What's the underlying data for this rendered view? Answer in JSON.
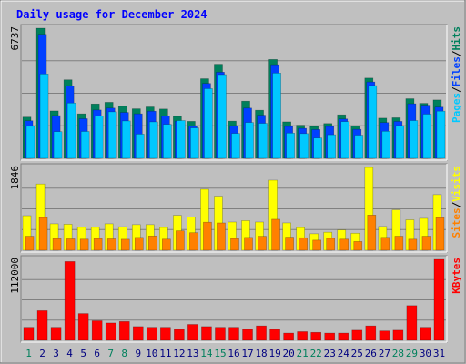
{
  "title": "Daily usage for December 2024",
  "colors": {
    "background": "#c0c0c0",
    "plot_background": "#bfbfbf",
    "gridline": "#808080",
    "title": "#0000ff",
    "hits": "#00805c",
    "files": "#0040ff",
    "pages": "#00c8ff",
    "visits": "#ffff00",
    "sites": "#ff8000",
    "kbytes": "#ff0000",
    "day_label": "#000080",
    "weekend_label": "#00805c"
  },
  "chart_data": [
    {
      "type": "bar",
      "panel": "hits-files-pages",
      "y_max_label": "6737",
      "ylim": [
        0,
        6737
      ],
      "grid": true,
      "legend": {
        "placement": "right-vertical",
        "entries": [
          {
            "label": "Pages",
            "color": "#00c8ff"
          },
          {
            "label": "Files",
            "color": "#0040ff"
          },
          {
            "label": "Hits",
            "color": "#00805c"
          }
        ],
        "separator": "/"
      },
      "categories": [
        "1",
        "2",
        "3",
        "4",
        "5",
        "6",
        "7",
        "8",
        "9",
        "10",
        "11",
        "12",
        "13",
        "14",
        "15",
        "16",
        "17",
        "18",
        "19",
        "20",
        "21",
        "22",
        "23",
        "24",
        "25",
        "26",
        "27",
        "28",
        "29",
        "30",
        "31"
      ],
      "series": [
        {
          "name": "Hits",
          "values": [
            2133,
            6737,
            2452,
            4064,
            2303,
            2815,
            2900,
            2695,
            2563,
            2660,
            2552,
            2172,
            1913,
            4120,
            4871,
            1925,
            2958,
            2489,
            5118,
            1887,
            1714,
            1650,
            1800,
            2253,
            1686,
            4153,
            2078,
            2099,
            3084,
            2845,
            3020
          ]
        },
        {
          "name": "Files",
          "values": [
            1942,
            6416,
            2213,
            3744,
            2051,
            2502,
            2600,
            2375,
            2303,
            2439,
            2200,
            1927,
            1665,
            3876,
            4460,
            1690,
            2600,
            2233,
            4847,
            1650,
            1550,
            1490,
            1650,
            2036,
            1500,
            3952,
            1850,
            1912,
            2824,
            2750,
            2650
          ]
        },
        {
          "name": "Pages",
          "values": [
            1660,
            4367,
            1380,
            2862,
            1390,
            2191,
            2407,
            1935,
            1254,
            1887,
            1758,
            1954,
            1574,
            3608,
            4334,
            1288,
            1855,
            1811,
            4413,
            1306,
            1280,
            1050,
            1220,
            1900,
            1200,
            3764,
            1400,
            1690,
            1954,
            2286,
            2441
          ]
        }
      ]
    },
    {
      "type": "bar",
      "panel": "visits-sites",
      "y_max_label": "1846",
      "ylim": [
        0,
        1846
      ],
      "grid": true,
      "legend": {
        "placement": "right-vertical",
        "entries": [
          {
            "label": "Sites",
            "color": "#ff8000"
          },
          {
            "label": "Visits",
            "color": "#ffff00"
          }
        ],
        "separator": "/"
      },
      "categories": [
        "1",
        "2",
        "3",
        "4",
        "5",
        "6",
        "7",
        "8",
        "9",
        "10",
        "11",
        "12",
        "13",
        "14",
        "15",
        "16",
        "17",
        "18",
        "19",
        "20",
        "21",
        "22",
        "23",
        "24",
        "25",
        "26",
        "27",
        "28",
        "29",
        "30",
        "31"
      ],
      "series": [
        {
          "name": "Visits",
          "values": [
            770,
            1477,
            590,
            580,
            511,
            511,
            590,
            524,
            571,
            571,
            508,
            778,
            739,
            1360,
            1205,
            629,
            661,
            629,
            1562,
            610,
            505,
            368,
            402,
            452,
            380,
            1846,
            530,
            900,
            679,
            711,
            1240
          ]
        },
        {
          "name": "Sites",
          "values": [
            313,
            730,
            260,
            254,
            248,
            261,
            254,
            246,
            287,
            319,
            248,
            433,
            391,
            625,
            609,
            261,
            287,
            312,
            691,
            293,
            279,
            226,
            266,
            248,
            195,
            785,
            288,
            314,
            247,
            314,
            726
          ]
        }
      ]
    },
    {
      "type": "bar",
      "panel": "kbytes",
      "y_max_label": "112000",
      "ylim": [
        0,
        112000
      ],
      "grid": true,
      "legend": {
        "placement": "right-vertical",
        "entries": [
          {
            "label": "KBytes",
            "color": "#ff0000"
          }
        ],
        "separator": ""
      },
      "categories": [
        "1",
        "2",
        "3",
        "4",
        "5",
        "6",
        "7",
        "8",
        "9",
        "10",
        "11",
        "12",
        "13",
        "14",
        "15",
        "16",
        "17",
        "18",
        "19",
        "20",
        "21",
        "22",
        "23",
        "24",
        "25",
        "26",
        "27",
        "28",
        "29",
        "30",
        "31"
      ],
      "series": [
        {
          "name": "KBytes",
          "values": [
            18000,
            41000,
            18000,
            109000,
            37000,
            27000,
            24000,
            26000,
            19000,
            18000,
            18000,
            15000,
            22000,
            19000,
            18000,
            18000,
            15000,
            20000,
            15000,
            10000,
            12000,
            11000,
            10000,
            10000,
            14000,
            20000,
            13000,
            14000,
            48000,
            18000,
            112000
          ]
        }
      ]
    }
  ],
  "x_axis": {
    "labels": [
      "1",
      "2",
      "3",
      "4",
      "5",
      "6",
      "7",
      "8",
      "9",
      "10",
      "11",
      "12",
      "13",
      "14",
      "15",
      "16",
      "17",
      "18",
      "19",
      "20",
      "21",
      "22",
      "23",
      "24",
      "25",
      "26",
      "27",
      "28",
      "29",
      "30",
      "31"
    ],
    "weekend_days": [
      "1",
      "7",
      "8",
      "14",
      "15",
      "21",
      "22",
      "28",
      "29"
    ]
  }
}
